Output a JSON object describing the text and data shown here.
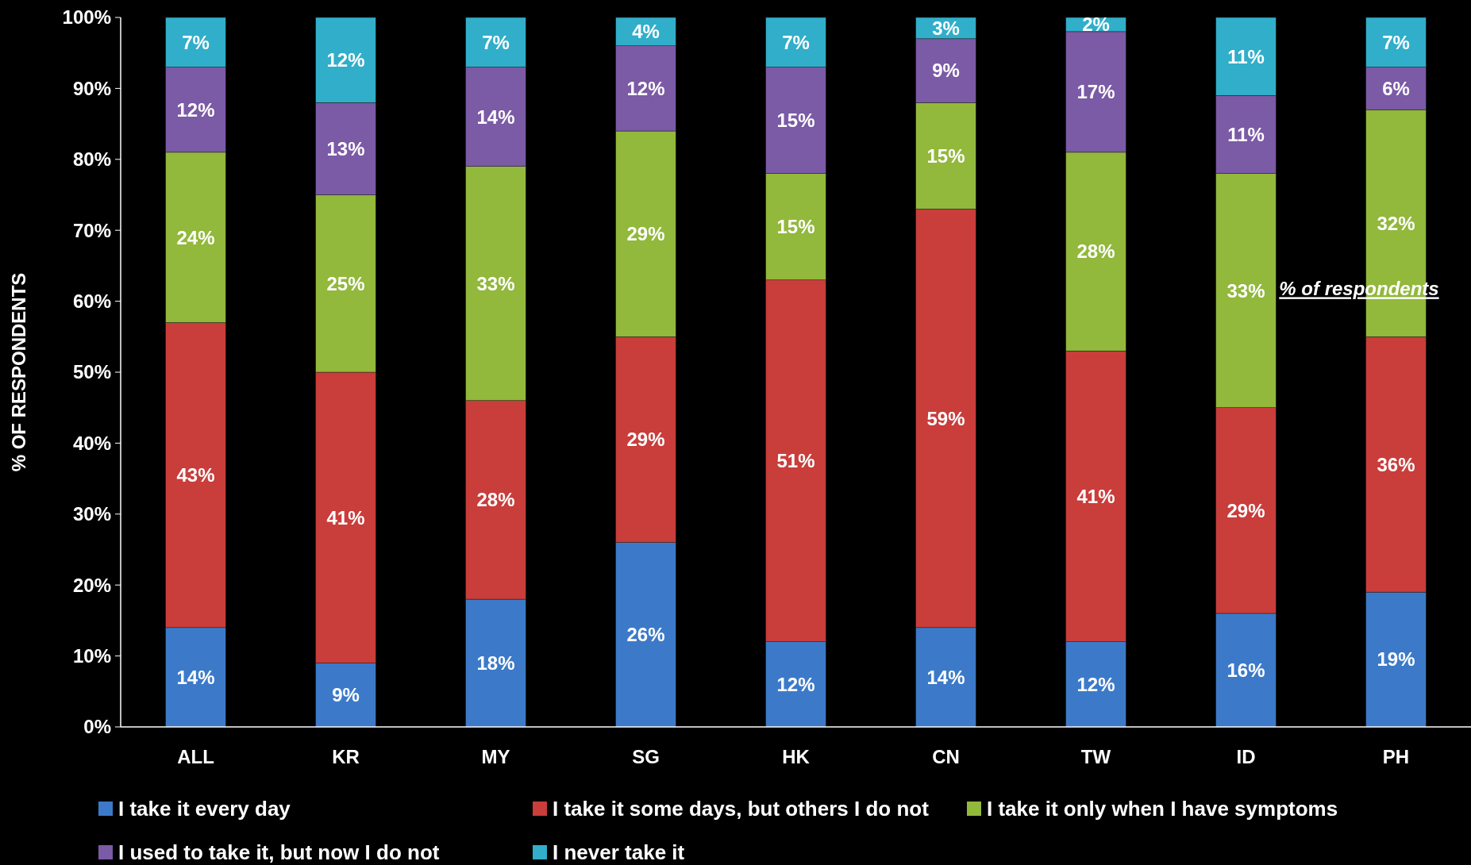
{
  "chart_data": {
    "type": "bar",
    "stacked": true,
    "ylabel": "% OF RESPONDENTS",
    "categories": [
      "ALL",
      "KR",
      "MY",
      "SG",
      "HK",
      "CN",
      "TW",
      "ID",
      "PH"
    ],
    "series": [
      {
        "name": "I take it every day",
        "color": "#3c7ac9",
        "values": [
          14,
          9,
          18,
          26,
          12,
          14,
          12,
          16,
          19
        ],
        "value_labels": [
          "14%",
          "9%",
          "18%",
          "26%",
          "12%",
          "14%",
          "12%",
          "16%",
          "19%"
        ]
      },
      {
        "name": "I take it some days, but others I do not",
        "color": "#c93d3b",
        "values": [
          43,
          41,
          28,
          29,
          51,
          59,
          41,
          29,
          36
        ],
        "value_labels": [
          "43%",
          "41%",
          "28%",
          "29%",
          "51%",
          "59%",
          "41%",
          "29%",
          "36%"
        ]
      },
      {
        "name": "I take it only when I have symptoms",
        "color": "#92b83c",
        "values": [
          24,
          25,
          33,
          29,
          15,
          15,
          28,
          33,
          32
        ],
        "value_labels": [
          "24%",
          "25%",
          "33%",
          "29%",
          "15%",
          "15%",
          "28%",
          "33%",
          "32%"
        ]
      },
      {
        "name": "I used to take it, but now I do not",
        "color": "#7b5aa6",
        "values": [
          12,
          13,
          14,
          12,
          15,
          9,
          17,
          11,
          6
        ],
        "value_labels": [
          "12%",
          "13%",
          "14%",
          "12%",
          "15%",
          "9%",
          "17%",
          "11%",
          "6%"
        ]
      },
      {
        "name": "I never take it",
        "color": "#31aec9",
        "values": [
          7,
          12,
          7,
          4,
          7,
          3,
          2,
          11,
          7
        ],
        "value_labels": [
          "7%",
          "12%",
          "7%",
          "4%",
          "7%",
          "3%",
          "2%",
          "11%",
          "7%"
        ]
      }
    ],
    "ylim": [
      0,
      100
    ],
    "yticks": [
      {
        "value": 0,
        "label": "0%"
      },
      {
        "value": 10,
        "label": "10%"
      },
      {
        "value": 20,
        "label": "20%"
      },
      {
        "value": 30,
        "label": "30%"
      },
      {
        "value": 40,
        "label": "40%"
      },
      {
        "value": 50,
        "label": "50%"
      },
      {
        "value": 60,
        "label": "60%"
      },
      {
        "value": 70,
        "label": "70%"
      },
      {
        "value": 80,
        "label": "80%"
      },
      {
        "value": 90,
        "label": "90%"
      },
      {
        "value": 100,
        "label": "100%"
      }
    ],
    "legend": "bottom",
    "annotations": [
      "% of respondents"
    ]
  }
}
